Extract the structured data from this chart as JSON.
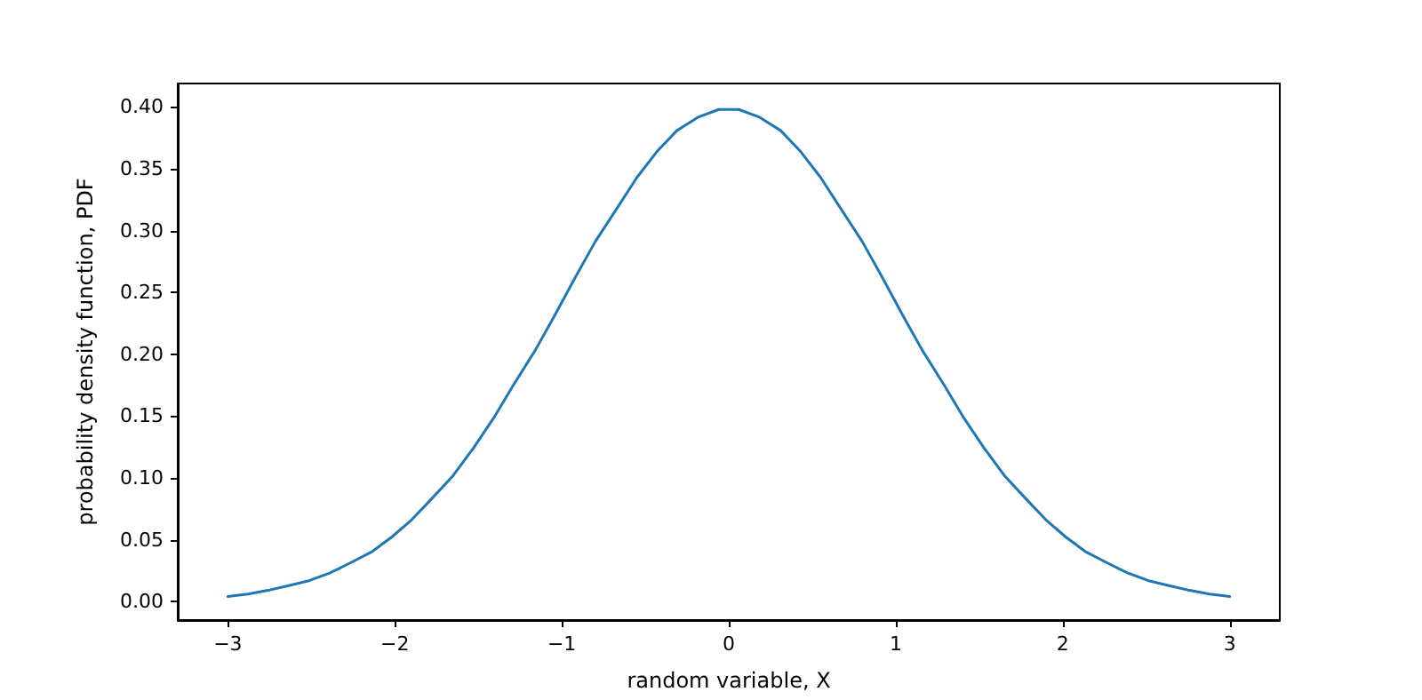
{
  "chart_data": {
    "type": "line",
    "xlabel": "random variable, X",
    "ylabel": "probability density function, PDF",
    "x": [
      -3,
      -2.88,
      -2.76,
      -2.63,
      -2.51,
      -2.39,
      -2.27,
      -2.14,
      -2.02,
      -1.9,
      -1.78,
      -1.65,
      -1.53,
      -1.41,
      -1.29,
      -1.16,
      -1.04,
      -0.92,
      -0.8,
      -0.67,
      -0.55,
      -0.43,
      -0.31,
      -0.18,
      -0.06,
      0.06,
      0.18,
      0.31,
      0.43,
      0.55,
      0.67,
      0.8,
      0.92,
      1.04,
      1.16,
      1.29,
      1.41,
      1.53,
      1.65,
      1.78,
      1.9,
      2.02,
      2.14,
      2.27,
      2.39,
      2.51,
      2.63,
      2.76,
      2.88,
      3
    ],
    "series": [
      {
        "color": "#1f77b4",
        "values": [
          0.004,
          0.006,
          0.009,
          0.013,
          0.017,
          0.023,
          0.031,
          0.04,
          0.052,
          0.066,
          0.083,
          0.102,
          0.124,
          0.148,
          0.175,
          0.203,
          0.232,
          0.262,
          0.291,
          0.318,
          0.343,
          0.364,
          0.381,
          0.392,
          0.398,
          0.398,
          0.392,
          0.381,
          0.364,
          0.343,
          0.318,
          0.291,
          0.262,
          0.232,
          0.203,
          0.175,
          0.148,
          0.124,
          0.102,
          0.083,
          0.066,
          0.052,
          0.04,
          0.031,
          0.023,
          0.017,
          0.013,
          0.009,
          0.006,
          0.004
        ]
      }
    ],
    "xlim": [
      -3.3,
      3.3
    ],
    "ylim": [
      -0.015,
      0.419
    ],
    "xticks": [
      {
        "value": -3,
        "label": "−3"
      },
      {
        "value": -2,
        "label": "−2"
      },
      {
        "value": -1,
        "label": "−1"
      },
      0,
      1,
      2,
      3
    ],
    "yticks": [
      {
        "value": 0,
        "label": "0.00"
      },
      {
        "value": 0.05,
        "label": "0.05"
      },
      {
        "value": 0.1,
        "label": "0.10"
      },
      {
        "value": 0.15,
        "label": "0.15"
      },
      {
        "value": 0.2,
        "label": "0.20"
      },
      {
        "value": 0.25,
        "label": "0.25"
      },
      {
        "value": 0.3,
        "label": "0.30"
      },
      {
        "value": 0.35,
        "label": "0.35"
      },
      {
        "value": 0.4,
        "label": "0.40"
      }
    ],
    "marker": "none",
    "line_style": "solid"
  }
}
